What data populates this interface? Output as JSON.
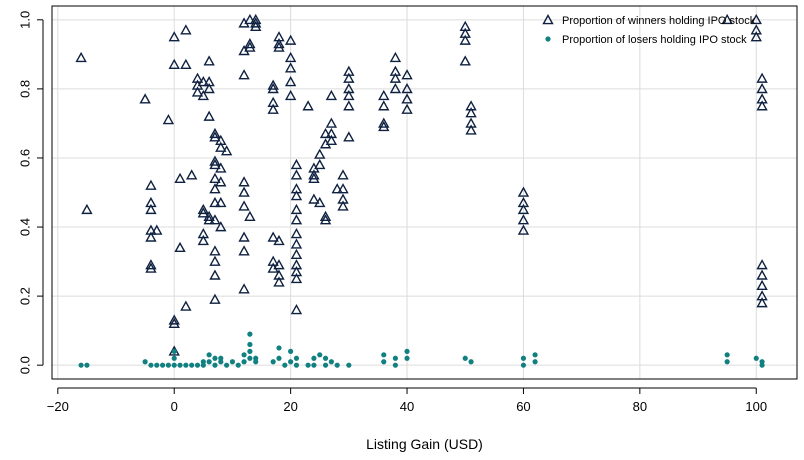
{
  "chart_data": {
    "type": "scatter",
    "title": "",
    "xlabel": "Listing Gain (USD)",
    "ylabel": "",
    "xlim": [
      -21,
      107
    ],
    "ylim": [
      -0.04,
      1.04
    ],
    "xticks": [
      -20,
      0,
      20,
      40,
      60,
      80,
      100
    ],
    "xtick_labels": [
      "−20",
      "0",
      "20",
      "40",
      "60",
      "80",
      "100"
    ],
    "yticks": [
      0.0,
      0.2,
      0.4,
      0.6,
      0.8,
      1.0
    ],
    "ytick_labels": [
      "0.0",
      "0.2",
      "0.4",
      "0.6",
      "0.8",
      "1.0"
    ],
    "grid": true,
    "legend_position": "top-right",
    "series": [
      {
        "name": "Proportion of winners holding IPO stock",
        "marker": "open-triangle",
        "color": "#0f2140",
        "points": [
          [
            -16,
            0.89
          ],
          [
            -15,
            0.45
          ],
          [
            -5,
            0.77
          ],
          [
            -4,
            0.52
          ],
          [
            -4,
            0.47
          ],
          [
            -4,
            0.45
          ],
          [
            -4,
            0.39
          ],
          [
            -4,
            0.37
          ],
          [
            -4,
            0.29
          ],
          [
            -4,
            0.28
          ],
          [
            -3,
            0.39
          ],
          [
            -1,
            0.71
          ],
          [
            0,
            0.95
          ],
          [
            0,
            0.87
          ],
          [
            0,
            0.13
          ],
          [
            0,
            0.12
          ],
          [
            0,
            0.04
          ],
          [
            1,
            0.54
          ],
          [
            1,
            0.34
          ],
          [
            2,
            0.97
          ],
          [
            2,
            0.87
          ],
          [
            3,
            0.55
          ],
          [
            2,
            0.17
          ],
          [
            4,
            0.83
          ],
          [
            4,
            0.81
          ],
          [
            4,
            0.79
          ],
          [
            5,
            0.82
          ],
          [
            5,
            0.78
          ],
          [
            5,
            0.45
          ],
          [
            5,
            0.44
          ],
          [
            5,
            0.38
          ],
          [
            5,
            0.36
          ],
          [
            6,
            0.88
          ],
          [
            6,
            0.82
          ],
          [
            6,
            0.8
          ],
          [
            6,
            0.72
          ],
          [
            6,
            0.43
          ],
          [
            6,
            0.42
          ],
          [
            7,
            0.67
          ],
          [
            7,
            0.66
          ],
          [
            7,
            0.59
          ],
          [
            7,
            0.58
          ],
          [
            7,
            0.54
          ],
          [
            7,
            0.51
          ],
          [
            7,
            0.47
          ],
          [
            7,
            0.42
          ],
          [
            7,
            0.33
          ],
          [
            7,
            0.3
          ],
          [
            7,
            0.26
          ],
          [
            7,
            0.19
          ],
          [
            8,
            0.65
          ],
          [
            8,
            0.63
          ],
          [
            8,
            0.57
          ],
          [
            8,
            0.53
          ],
          [
            8,
            0.47
          ],
          [
            8,
            0.4
          ],
          [
            9,
            0.62
          ],
          [
            12,
            0.99
          ],
          [
            12,
            0.91
          ],
          [
            12,
            0.84
          ],
          [
            12,
            0.53
          ],
          [
            12,
            0.5
          ],
          [
            12,
            0.46
          ],
          [
            12,
            0.37
          ],
          [
            12,
            0.33
          ],
          [
            12,
            0.22
          ],
          [
            13,
            1.0
          ],
          [
            13,
            0.93
          ],
          [
            13,
            0.92
          ],
          [
            13,
            0.43
          ],
          [
            14,
            1.0
          ],
          [
            14,
            0.99
          ],
          [
            14,
            0.98
          ],
          [
            17,
            0.81
          ],
          [
            17,
            0.8
          ],
          [
            17,
            0.76
          ],
          [
            17,
            0.74
          ],
          [
            17,
            0.37
          ],
          [
            17,
            0.3
          ],
          [
            17,
            0.28
          ],
          [
            18,
            0.95
          ],
          [
            18,
            0.93
          ],
          [
            18,
            0.92
          ],
          [
            18,
            0.36
          ],
          [
            18,
            0.29
          ],
          [
            18,
            0.26
          ],
          [
            18,
            0.24
          ],
          [
            20,
            0.94
          ],
          [
            20,
            0.89
          ],
          [
            20,
            0.86
          ],
          [
            20,
            0.82
          ],
          [
            20,
            0.78
          ],
          [
            21,
            0.58
          ],
          [
            21,
            0.55
          ],
          [
            21,
            0.51
          ],
          [
            21,
            0.49
          ],
          [
            21,
            0.45
          ],
          [
            21,
            0.42
          ],
          [
            21,
            0.38
          ],
          [
            21,
            0.35
          ],
          [
            21,
            0.32
          ],
          [
            21,
            0.29
          ],
          [
            21,
            0.27
          ],
          [
            21,
            0.25
          ],
          [
            21,
            0.16
          ],
          [
            23,
            0.75
          ],
          [
            24,
            0.57
          ],
          [
            24,
            0.55
          ],
          [
            24,
            0.54
          ],
          [
            24,
            0.48
          ],
          [
            25,
            0.61
          ],
          [
            25,
            0.58
          ],
          [
            25,
            0.47
          ],
          [
            26,
            0.67
          ],
          [
            26,
            0.64
          ],
          [
            26,
            0.43
          ],
          [
            26,
            0.42
          ],
          [
            27,
            0.78
          ],
          [
            27,
            0.7
          ],
          [
            27,
            0.67
          ],
          [
            27,
            0.65
          ],
          [
            28,
            0.51
          ],
          [
            29,
            0.55
          ],
          [
            29,
            0.51
          ],
          [
            29,
            0.48
          ],
          [
            29,
            0.46
          ],
          [
            30,
            0.85
          ],
          [
            30,
            0.83
          ],
          [
            30,
            0.8
          ],
          [
            30,
            0.78
          ],
          [
            30,
            0.75
          ],
          [
            30,
            0.66
          ],
          [
            36,
            0.78
          ],
          [
            36,
            0.75
          ],
          [
            36,
            0.7
          ],
          [
            36,
            0.69
          ],
          [
            38,
            0.89
          ],
          [
            38,
            0.85
          ],
          [
            38,
            0.83
          ],
          [
            38,
            0.8
          ],
          [
            40,
            0.84
          ],
          [
            40,
            0.8
          ],
          [
            40,
            0.77
          ],
          [
            40,
            0.74
          ],
          [
            50,
            0.98
          ],
          [
            50,
            0.96
          ],
          [
            50,
            0.94
          ],
          [
            50,
            0.88
          ],
          [
            51,
            0.75
          ],
          [
            51,
            0.73
          ],
          [
            51,
            0.7
          ],
          [
            51,
            0.68
          ],
          [
            60,
            0.5
          ],
          [
            60,
            0.47
          ],
          [
            60,
            0.45
          ],
          [
            60,
            0.42
          ],
          [
            60,
            0.39
          ],
          [
            95,
            1.0
          ],
          [
            100,
            1.0
          ],
          [
            100,
            0.97
          ],
          [
            100,
            0.95
          ],
          [
            101,
            0.83
          ],
          [
            101,
            0.8
          ],
          [
            101,
            0.77
          ],
          [
            101,
            0.75
          ],
          [
            101,
            0.29
          ],
          [
            101,
            0.26
          ],
          [
            101,
            0.23
          ],
          [
            101,
            0.2
          ],
          [
            101,
            0.18
          ]
        ]
      },
      {
        "name": "Proportion of losers holding IPO stock",
        "marker": "filled-circle",
        "color": "#118080",
        "points": [
          [
            -16,
            0.0
          ],
          [
            -15,
            0.0
          ],
          [
            -5,
            0.01
          ],
          [
            -4,
            0.0
          ],
          [
            -3,
            0.0
          ],
          [
            -2,
            0.0
          ],
          [
            -1,
            0.0
          ],
          [
            0,
            0.0
          ],
          [
            0,
            0.04
          ],
          [
            0,
            0.02
          ],
          [
            1,
            0.0
          ],
          [
            2,
            0.0
          ],
          [
            3,
            0.0
          ],
          [
            4,
            0.0
          ],
          [
            5,
            0.0
          ],
          [
            5,
            0.01
          ],
          [
            6,
            0.03
          ],
          [
            6,
            0.01
          ],
          [
            7,
            0.02
          ],
          [
            7,
            0.0
          ],
          [
            8,
            0.02
          ],
          [
            8,
            0.01
          ],
          [
            9,
            0.0
          ],
          [
            10,
            0.01
          ],
          [
            11,
            0.0
          ],
          [
            12,
            0.03
          ],
          [
            12,
            0.01
          ],
          [
            13,
            0.09
          ],
          [
            13,
            0.06
          ],
          [
            13,
            0.04
          ],
          [
            13,
            0.02
          ],
          [
            14,
            0.02
          ],
          [
            14,
            0.01
          ],
          [
            17,
            0.01
          ],
          [
            18,
            0.05
          ],
          [
            18,
            0.02
          ],
          [
            19,
            0.0
          ],
          [
            20,
            0.04
          ],
          [
            20,
            0.01
          ],
          [
            21,
            0.02
          ],
          [
            21,
            0.0
          ],
          [
            23,
            0.0
          ],
          [
            24,
            0.02
          ],
          [
            24,
            0.0
          ],
          [
            25,
            0.03
          ],
          [
            26,
            0.02
          ],
          [
            26,
            0.0
          ],
          [
            27,
            0.01
          ],
          [
            28,
            0.0
          ],
          [
            30,
            0.0
          ],
          [
            36,
            0.03
          ],
          [
            36,
            0.01
          ],
          [
            38,
            0.02
          ],
          [
            38,
            0.0
          ],
          [
            40,
            0.04
          ],
          [
            40,
            0.02
          ],
          [
            50,
            0.02
          ],
          [
            51,
            0.01
          ],
          [
            60,
            0.02
          ],
          [
            60,
            0.0
          ],
          [
            62,
            0.03
          ],
          [
            62,
            0.01
          ],
          [
            95,
            0.03
          ],
          [
            95,
            0.01
          ],
          [
            100,
            0.02
          ],
          [
            101,
            0.01
          ],
          [
            101,
            0.0
          ]
        ]
      }
    ]
  }
}
